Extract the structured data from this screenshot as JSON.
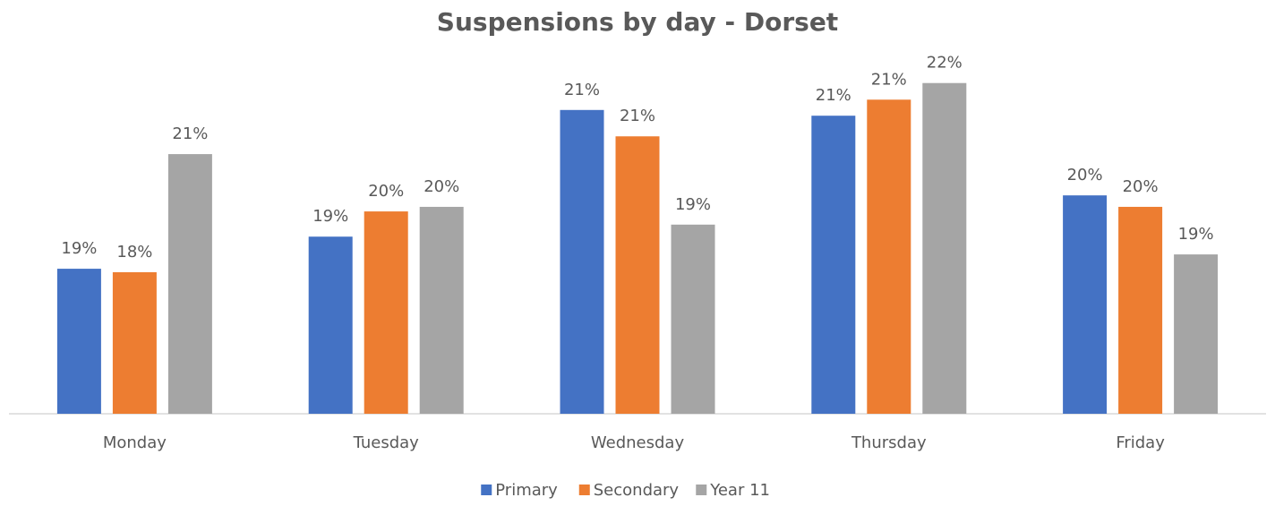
{
  "chart_data": {
    "type": "bar",
    "title": "Suspensions by day - Dorset",
    "categories": [
      "Monday",
      "Tuesday",
      "Wednesday",
      "Thursday",
      "Friday"
    ],
    "series": [
      {
        "name": "Primary",
        "color": "#4472c4",
        "values": [
          18.53,
          19.09,
          21.3,
          21.2,
          19.81
        ],
        "value_labels": [
          "19%",
          "19%",
          "21%",
          "21%",
          "20%"
        ]
      },
      {
        "name": "Secondary",
        "color": "#ed7d31",
        "values": [
          18.47,
          19.53,
          20.84,
          21.48,
          19.61
        ],
        "value_labels": [
          "18%",
          "20%",
          "21%",
          "21%",
          "20%"
        ]
      },
      {
        "name": "Year 11",
        "color": "#a5a5a5",
        "values": [
          20.53,
          19.61,
          19.3,
          21.77,
          18.78
        ],
        "value_labels": [
          "21%",
          "20%",
          "19%",
          "22%",
          "19%"
        ]
      }
    ],
    "ylim": [
      16,
      22.3
    ],
    "legend": "bottom"
  }
}
